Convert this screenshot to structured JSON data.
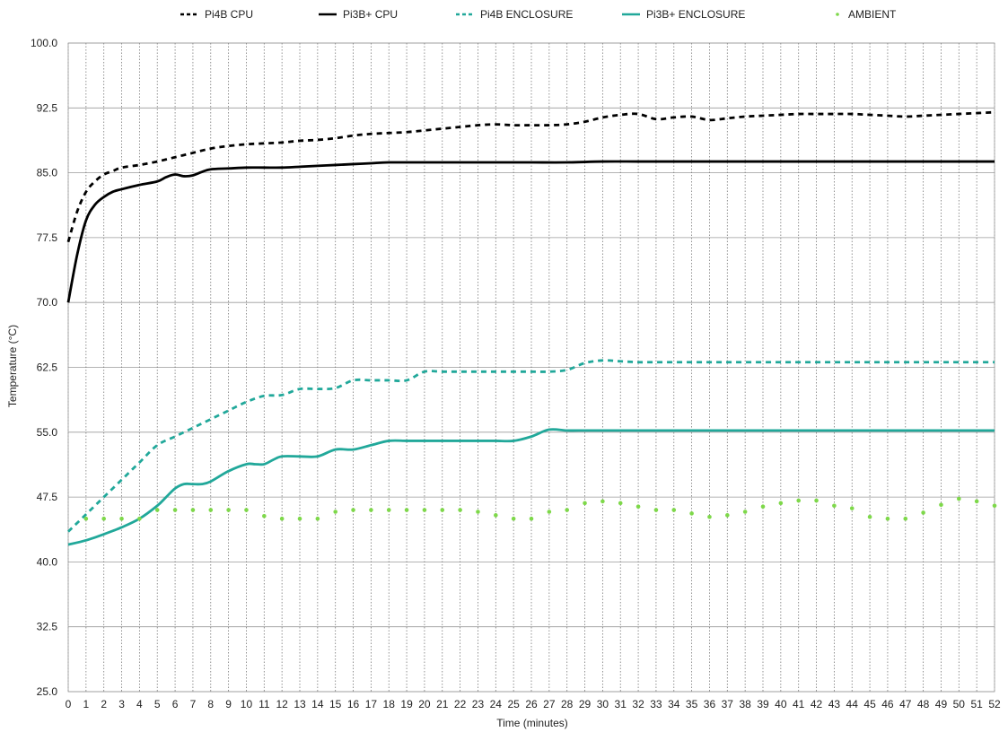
{
  "chart_data": {
    "type": "line",
    "xlabel": "Time (minutes)",
    "ylabel": "Temperature (°C)",
    "xlim": [
      0,
      52
    ],
    "ylim": [
      25,
      100
    ],
    "x_ticks": [
      0,
      1,
      2,
      3,
      4,
      5,
      6,
      7,
      8,
      9,
      10,
      11,
      12,
      13,
      14,
      15,
      16,
      17,
      18,
      19,
      20,
      21,
      22,
      23,
      24,
      25,
      26,
      27,
      28,
      29,
      30,
      31,
      32,
      33,
      34,
      35,
      36,
      37,
      38,
      39,
      40,
      41,
      42,
      43,
      44,
      45,
      46,
      47,
      48,
      49,
      50,
      51,
      52
    ],
    "y_ticks": [
      "25.0",
      "32.5",
      "40.0",
      "47.5",
      "55.0",
      "62.5",
      "70.0",
      "77.5",
      "85.0",
      "92.5",
      "100.0"
    ],
    "grid": {
      "horizontal": "solid",
      "vertical": "dotted"
    },
    "legend_position": "top",
    "series": [
      {
        "name": "Pi4B CPU",
        "color": "#000000",
        "style": "dashed",
        "x": [
          0,
          0.5,
          1,
          1.5,
          2,
          2.5,
          3,
          4,
          5,
          6,
          7,
          8,
          9,
          10,
          11,
          12,
          13,
          14,
          15,
          16,
          17,
          18,
          19,
          20,
          21,
          22,
          23,
          24,
          25,
          26,
          27,
          28,
          29,
          30,
          31,
          32,
          33,
          34,
          35,
          36,
          37,
          38,
          39,
          40,
          41,
          42,
          43,
          44,
          45,
          46,
          47,
          48,
          49,
          50,
          51,
          52
        ],
        "values": [
          77,
          80.5,
          82.8,
          84,
          84.8,
          85.2,
          85.6,
          85.9,
          86.3,
          86.8,
          87.3,
          87.8,
          88.1,
          88.3,
          88.4,
          88.5,
          88.7,
          88.8,
          89,
          89.3,
          89.5,
          89.6,
          89.7,
          89.9,
          90.1,
          90.3,
          90.5,
          90.6,
          90.5,
          90.5,
          90.5,
          90.6,
          90.9,
          91.4,
          91.7,
          91.8,
          91.2,
          91.4,
          91.5,
          91.1,
          91.3,
          91.5,
          91.6,
          91.7,
          91.8,
          91.8,
          91.8,
          91.8,
          91.7,
          91.6,
          91.5,
          91.6,
          91.7,
          91.8,
          91.9,
          92
        ]
      },
      {
        "name": "Pi3B+ CPU",
        "color": "#000000",
        "style": "solid",
        "x": [
          0,
          0.5,
          1,
          1.5,
          2,
          2.5,
          3,
          4,
          5,
          5.5,
          6,
          6.5,
          7,
          7.5,
          8,
          9,
          10,
          11,
          12,
          13,
          14,
          15,
          16,
          17,
          18,
          20,
          22,
          24,
          26,
          28,
          30,
          32,
          34,
          36,
          38,
          40,
          42,
          44,
          46,
          48,
          50,
          52
        ],
        "values": [
          70,
          75.5,
          79.5,
          81.3,
          82.2,
          82.8,
          83.1,
          83.6,
          84,
          84.5,
          84.8,
          84.6,
          84.7,
          85.1,
          85.4,
          85.5,
          85.6,
          85.6,
          85.6,
          85.7,
          85.8,
          85.9,
          86,
          86.1,
          86.2,
          86.2,
          86.2,
          86.2,
          86.2,
          86.2,
          86.3,
          86.3,
          86.3,
          86.3,
          86.3,
          86.3,
          86.3,
          86.3,
          86.3,
          86.3,
          86.3,
          86.3
        ]
      },
      {
        "name": "Pi4B ENCLOSURE",
        "color": "#21a89a",
        "style": "dashed",
        "x": [
          0,
          1,
          2,
          3,
          4,
          5,
          6,
          7,
          8,
          9,
          10,
          11,
          12,
          13,
          14,
          15,
          16,
          17,
          18,
          19,
          20,
          21,
          22,
          23,
          24,
          25,
          26,
          27,
          28,
          29,
          30,
          31,
          32,
          33,
          34,
          35,
          36,
          37,
          38,
          39,
          40,
          41,
          42,
          43,
          44,
          45,
          46,
          47,
          48,
          49,
          50,
          51,
          52
        ],
        "values": [
          43.5,
          45.5,
          47.5,
          49.5,
          51.5,
          53.5,
          54.5,
          55.5,
          56.5,
          57.5,
          58.5,
          59.2,
          59.3,
          60,
          60,
          60.1,
          61,
          61,
          61,
          61,
          62,
          62,
          62,
          62,
          62,
          62,
          62,
          62,
          62.2,
          63,
          63.3,
          63.2,
          63.1,
          63.1,
          63.1,
          63.1,
          63.1,
          63.1,
          63.1,
          63.1,
          63.1,
          63.1,
          63.1,
          63.1,
          63.1,
          63.1,
          63.1,
          63.1,
          63.1,
          63.1,
          63.1,
          63.1,
          63.1
        ]
      },
      {
        "name": "Pi3B+ ENCLOSURE",
        "color": "#21a89a",
        "style": "solid",
        "x": [
          0,
          1,
          2,
          3,
          4,
          5,
          5.5,
          6,
          6.5,
          7,
          7.5,
          8,
          9,
          10,
          10.5,
          11,
          11.5,
          12,
          13,
          14,
          15,
          16,
          17,
          18,
          19,
          20,
          21,
          22,
          23,
          24,
          25,
          26,
          27,
          28,
          29,
          30,
          32,
          34,
          36,
          38,
          40,
          42,
          44,
          46,
          48,
          50,
          52
        ],
        "values": [
          42,
          42.5,
          43.2,
          44,
          45,
          46.5,
          47.5,
          48.5,
          49,
          49,
          49,
          49.3,
          50.5,
          51.3,
          51.3,
          51.3,
          51.8,
          52.2,
          52.2,
          52.2,
          53,
          53,
          53.5,
          54,
          54,
          54,
          54,
          54,
          54,
          54,
          54,
          54.5,
          55.3,
          55.2,
          55.2,
          55.2,
          55.2,
          55.2,
          55.2,
          55.2,
          55.2,
          55.2,
          55.2,
          55.2,
          55.2,
          55.2,
          55.2
        ]
      },
      {
        "name": "AMBIENT",
        "color": "#7ed84a",
        "style": "dotted",
        "x": [
          1,
          2,
          3,
          4,
          5,
          6,
          7,
          8,
          9,
          10,
          11,
          12,
          13,
          14,
          15,
          16,
          17,
          18,
          19,
          20,
          21,
          22,
          23,
          24,
          25,
          26,
          27,
          28,
          29,
          30,
          31,
          32,
          33,
          34,
          35,
          36,
          37,
          38,
          39,
          40,
          41,
          42,
          43,
          44,
          45,
          46,
          47,
          48,
          49,
          50,
          51,
          52
        ],
        "values": [
          45,
          45,
          45,
          45,
          46,
          46,
          46,
          46,
          46,
          46,
          45.3,
          45,
          45,
          45,
          45.8,
          46,
          46,
          46,
          46,
          46,
          46,
          46,
          45.8,
          45.4,
          45,
          45,
          45.8,
          46,
          46.8,
          47,
          46.8,
          46.4,
          46,
          46,
          45.6,
          45.2,
          45.4,
          45.8,
          46.4,
          46.8,
          47.1,
          47.1,
          46.5,
          46.2,
          45.2,
          45,
          45,
          45.7,
          46.6,
          47.3,
          47,
          46.5
        ]
      }
    ]
  }
}
